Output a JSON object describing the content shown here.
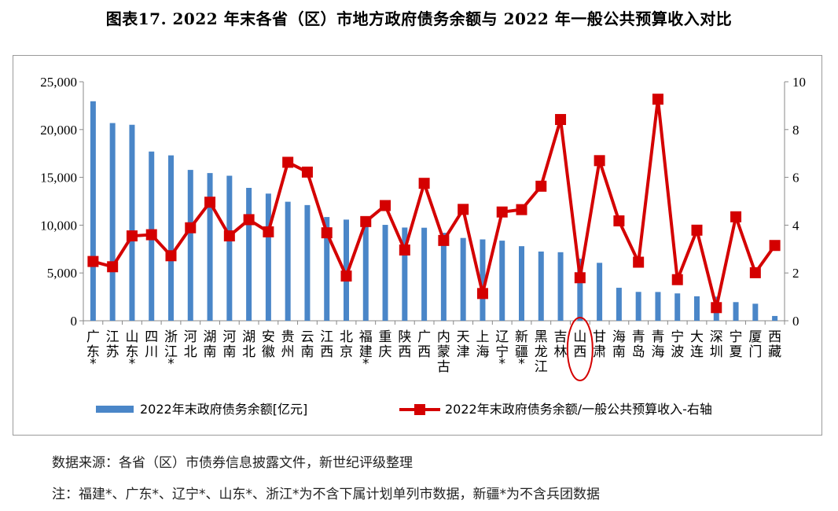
{
  "title": "图表17. 2022 年末各省（区）市地方政府债务余额与 2022 年一般公共预算收入对比",
  "notes": {
    "source": "数据来源：各省（区）市债券信息披露文件，新世纪评级整理",
    "footnote": "注：福建*、广东*、辽宁*、山东*、浙江*为不含下属计划单列市数据，新疆*为不含兵团数据"
  },
  "colors": {
    "bar": "#4a86c8",
    "line": "#d40000",
    "frame": "#9a9a9a",
    "highlight": "#d40000"
  },
  "chart_data": {
    "type": "bar",
    "categories": [
      [
        "广",
        "东",
        "*"
      ],
      [
        "江",
        "苏"
      ],
      [
        "山",
        "东",
        "*"
      ],
      [
        "四",
        "川"
      ],
      [
        "浙",
        "江",
        "*"
      ],
      [
        "河",
        "北"
      ],
      [
        "湖",
        "南"
      ],
      [
        "河",
        "南"
      ],
      [
        "湖",
        "北"
      ],
      [
        "安",
        "徽"
      ],
      [
        "贵",
        "州"
      ],
      [
        "云",
        "南"
      ],
      [
        "江",
        "西"
      ],
      [
        "北",
        "京"
      ],
      [
        "福",
        "建",
        "*"
      ],
      [
        "重",
        "庆"
      ],
      [
        "陕",
        "西"
      ],
      [
        "广",
        "西"
      ],
      [
        "内",
        "蒙",
        "古"
      ],
      [
        "天",
        "津"
      ],
      [
        "上",
        "海"
      ],
      [
        "辽",
        "宁",
        "*"
      ],
      [
        "新",
        "疆",
        "*"
      ],
      [
        "黑",
        "龙",
        "江"
      ],
      [
        "吉",
        "林"
      ],
      [
        "山",
        "西"
      ],
      [
        "甘",
        "肃"
      ],
      [
        "海",
        "南"
      ],
      [
        "青",
        "岛"
      ],
      [
        "青",
        "海"
      ],
      [
        "宁",
        "波"
      ],
      [
        "大",
        "连"
      ],
      [
        "深",
        "圳"
      ],
      [
        "宁",
        "夏"
      ],
      [
        "厦",
        "门"
      ],
      [
        "西",
        "藏"
      ]
    ],
    "series": [
      {
        "name": "2022年末政府债务余额[亿元]",
        "type": "bar",
        "axis": "left",
        "values": [
          22960,
          20680,
          20500,
          17700,
          17300,
          15780,
          15450,
          15170,
          13900,
          13300,
          12450,
          12100,
          10850,
          10580,
          10380,
          10030,
          9750,
          9730,
          9200,
          8660,
          8510,
          8380,
          7800,
          7240,
          7170,
          6500,
          6060,
          3450,
          3020,
          3010,
          2860,
          2560,
          2520,
          1950,
          1780,
          500
        ]
      },
      {
        "name": "2022年末政府债务余额/一般公共预算收入-右轴",
        "type": "line",
        "axis": "right",
        "values": [
          2.48,
          2.26,
          3.55,
          3.6,
          2.72,
          3.89,
          4.96,
          3.55,
          4.23,
          3.72,
          6.63,
          6.22,
          3.68,
          1.87,
          4.15,
          4.82,
          2.96,
          5.75,
          3.36,
          4.66,
          1.14,
          4.55,
          4.65,
          5.63,
          8.42,
          1.8,
          6.7,
          4.18,
          2.45,
          9.27,
          1.72,
          3.79,
          0.55,
          4.35,
          2.01,
          3.15
        ]
      }
    ],
    "y_left": {
      "min": 0,
      "max": 25000,
      "ticks": [
        "0",
        "5,000",
        "10,000",
        "15,000",
        "20,000",
        "25,000"
      ]
    },
    "y_right": {
      "min": 0,
      "max": 10,
      "ticks": [
        "0",
        "2",
        "4",
        "6",
        "8",
        "10"
      ]
    },
    "highlight_category": "山西",
    "legend_position": "bottom",
    "grid": false
  }
}
